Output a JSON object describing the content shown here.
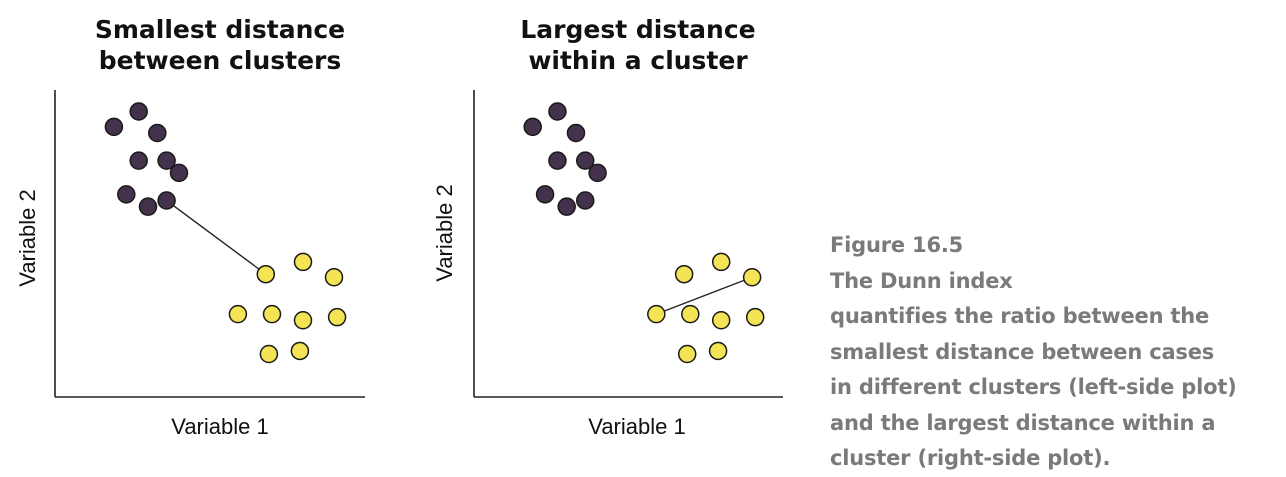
{
  "chart_data": [
    {
      "type": "scatter",
      "title_lines": [
        "Smallest distance",
        "between clusters"
      ],
      "xlabel": "Variable 1",
      "ylabel": "Variable 2",
      "series": [
        {
          "color": "#44324d",
          "points": [
            [
              1.9,
              8.8
            ],
            [
              2.7,
              9.3
            ],
            [
              3.3,
              8.6
            ],
            [
              2.7,
              7.7
            ],
            [
              3.6,
              7.7
            ],
            [
              4.0,
              7.3
            ],
            [
              2.3,
              6.6
            ],
            [
              3.0,
              6.2
            ],
            [
              3.6,
              6.4
            ]
          ]
        },
        {
          "color": "#f5e356",
          "points": [
            [
              6.8,
              4.0
            ],
            [
              8.0,
              4.4
            ],
            [
              9.0,
              3.9
            ],
            [
              5.9,
              2.7
            ],
            [
              7.0,
              2.7
            ],
            [
              8.0,
              2.5
            ],
            [
              9.1,
              2.6
            ],
            [
              6.9,
              1.4
            ],
            [
              7.9,
              1.5
            ]
          ]
        }
      ],
      "connector": {
        "from": [
          3.6,
          6.4
        ],
        "to": [
          6.8,
          4.0
        ]
      },
      "xlim": [
        0,
        10
      ],
      "ylim": [
        0,
        10
      ],
      "grid": false
    },
    {
      "type": "scatter",
      "title_lines": [
        "Largest distance",
        "within a cluster"
      ],
      "xlabel": "Variable 1",
      "ylabel": "Variable 2",
      "series": [
        {
          "color": "#44324d",
          "points": [
            [
              1.9,
              8.8
            ],
            [
              2.7,
              9.3
            ],
            [
              3.3,
              8.6
            ],
            [
              2.7,
              7.7
            ],
            [
              3.6,
              7.7
            ],
            [
              4.0,
              7.3
            ],
            [
              2.3,
              6.6
            ],
            [
              3.0,
              6.2
            ],
            [
              3.6,
              6.4
            ]
          ]
        },
        {
          "color": "#f5e356",
          "points": [
            [
              6.8,
              4.0
            ],
            [
              8.0,
              4.4
            ],
            [
              9.0,
              3.9
            ],
            [
              5.9,
              2.7
            ],
            [
              7.0,
              2.7
            ],
            [
              8.0,
              2.5
            ],
            [
              9.1,
              2.6
            ],
            [
              6.9,
              1.4
            ],
            [
              7.9,
              1.5
            ]
          ]
        }
      ],
      "connector": {
        "from": [
          5.9,
          2.7
        ],
        "to": [
          9.0,
          3.9
        ]
      },
      "xlim": [
        0,
        10
      ],
      "ylim": [
        0,
        10
      ],
      "grid": false
    }
  ],
  "caption": {
    "figure_number": "Figure 16.5",
    "lines": [
      "The Dunn index",
      "quantifies the ratio between the",
      "smallest distance between cases",
      "in different clusters (left-side plot)",
      "and the largest distance within a",
      "cluster (right-side plot)."
    ]
  }
}
